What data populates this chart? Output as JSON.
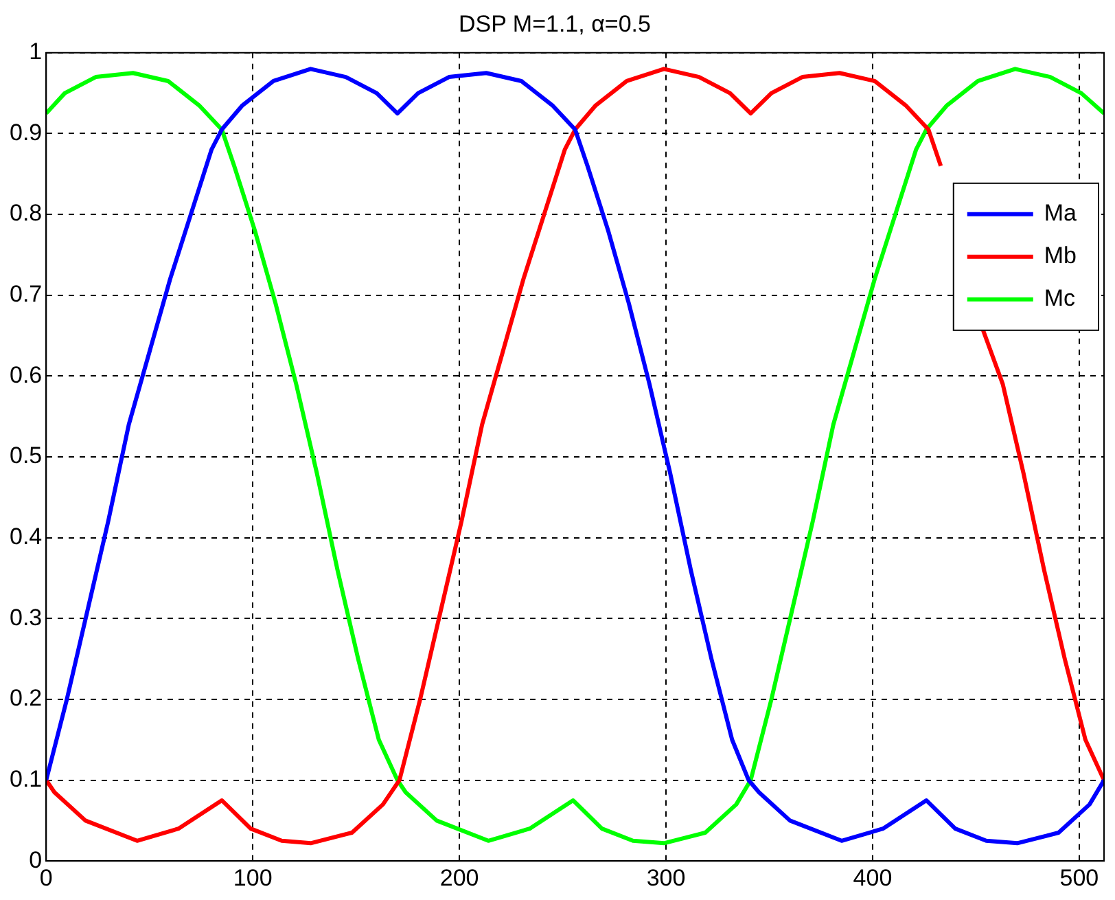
{
  "chart_data": {
    "type": "line",
    "title": "DSP M=1.1, α=0.5",
    "xlim": [
      0,
      512
    ],
    "xticks": [
      0,
      100,
      200,
      300,
      400,
      500
    ],
    "ylim": [
      0,
      1
    ],
    "yticks": [
      0,
      0.1,
      0.2,
      0.3,
      0.4,
      0.5,
      0.6,
      0.7,
      0.8,
      0.9,
      1
    ],
    "grid": true,
    "legend": "top right",
    "marker": "none",
    "line_style": "solid",
    "series": [
      {
        "name": "Ma",
        "color": "#0000ff",
        "x": [
          0,
          10,
          20,
          30,
          40,
          50,
          60,
          70,
          80,
          85,
          95,
          110,
          128,
          145,
          160,
          170,
          180,
          195,
          213,
          230,
          245,
          256,
          262,
          272,
          282,
          292,
          302,
          312,
          322,
          332,
          340,
          345,
          360,
          385,
          405,
          426,
          440,
          455,
          470,
          490,
          505,
          512
        ],
        "values": [
          0.1,
          0.2,
          0.31,
          0.42,
          0.54,
          0.63,
          0.72,
          0.8,
          0.88,
          0.905,
          0.935,
          0.965,
          0.98,
          0.97,
          0.95,
          0.925,
          0.95,
          0.97,
          0.975,
          0.965,
          0.935,
          0.905,
          0.86,
          0.78,
          0.69,
          0.59,
          0.48,
          0.36,
          0.25,
          0.15,
          0.1,
          0.085,
          0.05,
          0.025,
          0.04,
          0.075,
          0.04,
          0.025,
          0.022,
          0.035,
          0.07,
          0.1
        ]
      },
      {
        "name": "Mb",
        "color": "#ff0000",
        "x": [
          0,
          4,
          19,
          44,
          64,
          85,
          99,
          114,
          128,
          148,
          163,
          171,
          181,
          191,
          201,
          211,
          221,
          231,
          241,
          251,
          256,
          266,
          281,
          299,
          316,
          331,
          341,
          351,
          366,
          384,
          401,
          416,
          427,
          433,
          443,
          453,
          463,
          473,
          483,
          493,
          503,
          512
        ],
        "values": [
          0.1,
          0.085,
          0.05,
          0.025,
          0.04,
          0.075,
          0.04,
          0.025,
          0.022,
          0.035,
          0.07,
          0.1,
          0.2,
          0.31,
          0.42,
          0.54,
          0.63,
          0.72,
          0.8,
          0.88,
          0.905,
          0.935,
          0.965,
          0.98,
          0.97,
          0.95,
          0.925,
          0.95,
          0.97,
          0.975,
          0.965,
          0.935,
          0.905,
          0.86,
          null,
          0.66,
          0.59,
          0.48,
          0.36,
          0.25,
          0.15,
          0.1
        ]
      },
      {
        "name": "Mc",
        "color": "#00ff00",
        "x": [
          0,
          9,
          24,
          42,
          59,
          74,
          85,
          91,
          101,
          111,
          121,
          131,
          141,
          151,
          161,
          170,
          174,
          189,
          214,
          234,
          255,
          269,
          284,
          299,
          319,
          334,
          341,
          351,
          361,
          371,
          381,
          391,
          401,
          411,
          421,
          426,
          436,
          451,
          469,
          486,
          501,
          512
        ],
        "values": [
          0.925,
          0.95,
          0.97,
          0.975,
          0.965,
          0.935,
          0.905,
          0.86,
          0.78,
          0.69,
          0.59,
          0.48,
          0.36,
          0.25,
          0.15,
          0.1,
          0.085,
          0.05,
          0.025,
          0.04,
          0.075,
          0.04,
          0.025,
          0.022,
          0.035,
          0.07,
          0.1,
          0.2,
          0.31,
          0.42,
          0.54,
          0.63,
          0.72,
          0.8,
          0.88,
          0.905,
          0.935,
          0.965,
          0.98,
          0.97,
          0.95,
          0.925
        ]
      }
    ]
  }
}
